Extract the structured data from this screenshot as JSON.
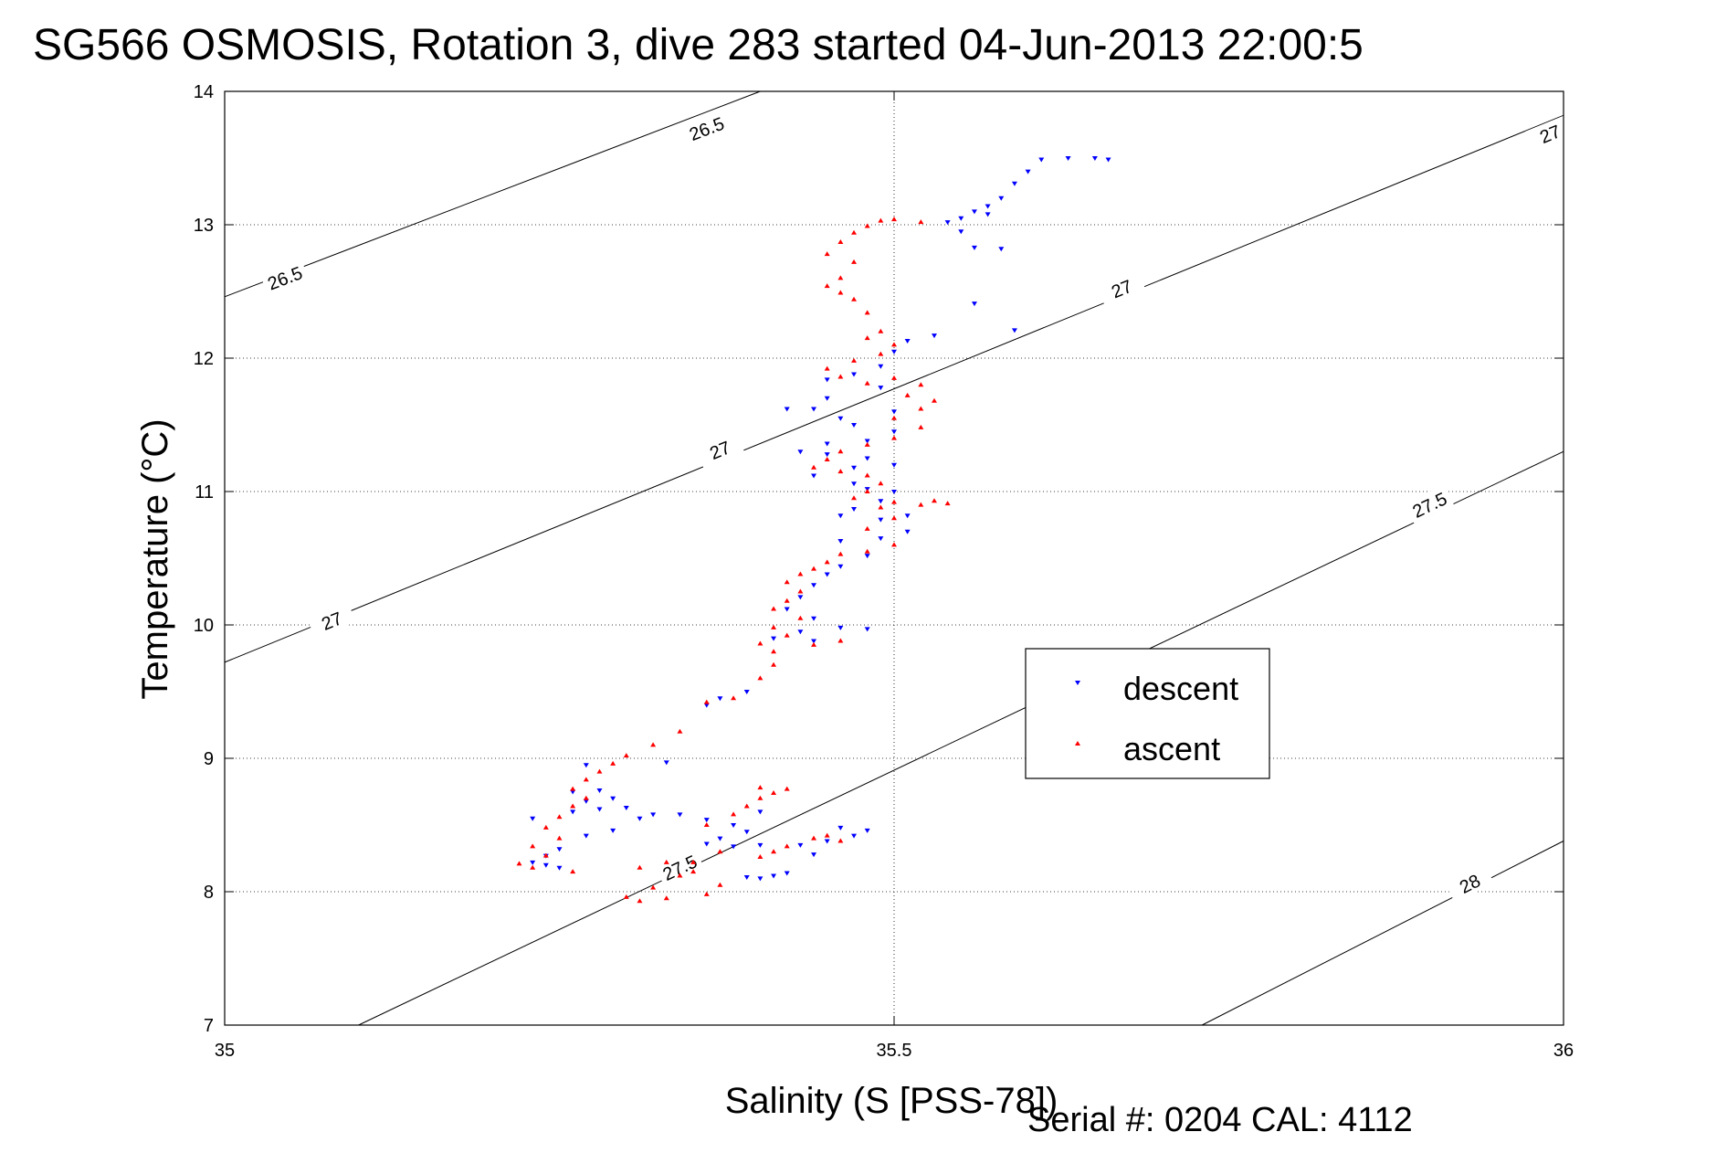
{
  "title": "SG566 OSMOSIS, Rotation 3, dive 283 started 04-Jun-2013 22:00:5",
  "footer": "Serial #: 0204  CAL: 4112",
  "chart_data": {
    "type": "scatter",
    "xlabel": "Salinity (S [PSS-78])",
    "ylabel": "Temperature (°C)",
    "xlim": [
      35,
      36
    ],
    "ylim": [
      7,
      14
    ],
    "xticks": [
      35,
      35.5,
      36
    ],
    "xtick_labels": [
      "35",
      "35.5",
      "36"
    ],
    "yticks": [
      7,
      8,
      9,
      10,
      11,
      12,
      13,
      14
    ],
    "ytick_labels": [
      "7",
      "8",
      "9",
      "10",
      "11",
      "12",
      "13",
      "14"
    ],
    "grid": true,
    "legend": {
      "placement": "center-right",
      "entries": [
        "descent",
        "ascent"
      ]
    },
    "colors": {
      "descent": "#0000ff",
      "ascent": "#ff0000",
      "contour": "#000000",
      "grid": "#000000"
    },
    "contours": [
      {
        "level": 26.5,
        "label": "26.5",
        "points": [
          [
            35.0,
            12.46
          ],
          [
            35.4,
            14.0
          ]
        ]
      },
      {
        "level": 27.0,
        "label": "27",
        "points": [
          [
            35.0,
            9.72
          ],
          [
            36.0,
            13.82
          ]
        ]
      },
      {
        "level": 27.5,
        "label": "27.5",
        "points": [
          [
            35.1,
            7.0
          ],
          [
            36.0,
            11.3
          ]
        ]
      },
      {
        "level": 28.0,
        "label": "28",
        "points": [
          [
            35.73,
            7.0
          ],
          [
            36.0,
            8.38
          ]
        ]
      }
    ],
    "contour_labels": [
      {
        "text": "26.5",
        "x": 35.36,
        "y": 13.72
      },
      {
        "text": "26.5",
        "x": 35.045,
        "y": 12.6
      },
      {
        "text": "27",
        "x": 35.99,
        "y": 13.68
      },
      {
        "text": "27",
        "x": 35.67,
        "y": 12.52
      },
      {
        "text": "27",
        "x": 35.37,
        "y": 11.31
      },
      {
        "text": "27",
        "x": 35.08,
        "y": 10.03
      },
      {
        "text": "27.5",
        "x": 35.9,
        "y": 10.9
      },
      {
        "text": "27.5",
        "x": 35.34,
        "y": 8.18
      },
      {
        "text": "28",
        "x": 35.93,
        "y": 8.06
      }
    ],
    "series": [
      {
        "name": "descent",
        "marker": "triangle-down",
        "points": [
          [
            35.66,
            13.49
          ],
          [
            35.65,
            13.5
          ],
          [
            35.63,
            13.5
          ],
          [
            35.61,
            13.49
          ],
          [
            35.6,
            13.4
          ],
          [
            35.59,
            13.31
          ],
          [
            35.58,
            13.2
          ],
          [
            35.57,
            13.14
          ],
          [
            35.56,
            13.1
          ],
          [
            35.55,
            13.05
          ],
          [
            35.54,
            13.02
          ],
          [
            35.57,
            13.08
          ],
          [
            35.55,
            12.95
          ],
          [
            35.56,
            12.83
          ],
          [
            35.58,
            12.82
          ],
          [
            35.59,
            12.21
          ],
          [
            35.56,
            12.41
          ],
          [
            35.53,
            12.17
          ],
          [
            35.51,
            12.13
          ],
          [
            35.5,
            12.05
          ],
          [
            35.49,
            11.94
          ],
          [
            35.47,
            11.88
          ],
          [
            35.45,
            11.84
          ],
          [
            35.49,
            11.78
          ],
          [
            35.45,
            11.7
          ],
          [
            35.42,
            11.62
          ],
          [
            35.44,
            11.62
          ],
          [
            35.46,
            11.55
          ],
          [
            35.47,
            11.5
          ],
          [
            35.5,
            11.6
          ],
          [
            35.5,
            11.45
          ],
          [
            35.48,
            11.38
          ],
          [
            35.45,
            11.36
          ],
          [
            35.43,
            11.3
          ],
          [
            35.45,
            11.28
          ],
          [
            35.48,
            11.25
          ],
          [
            35.5,
            11.2
          ],
          [
            35.47,
            11.18
          ],
          [
            35.44,
            11.12
          ],
          [
            35.47,
            11.06
          ],
          [
            35.48,
            11.02
          ],
          [
            35.5,
            11.0
          ],
          [
            35.49,
            10.93
          ],
          [
            35.47,
            10.87
          ],
          [
            35.46,
            10.82
          ],
          [
            35.49,
            10.79
          ],
          [
            35.51,
            10.82
          ],
          [
            35.51,
            10.7
          ],
          [
            35.49,
            10.65
          ],
          [
            35.46,
            10.63
          ],
          [
            35.48,
            10.52
          ],
          [
            35.46,
            10.44
          ],
          [
            35.45,
            10.38
          ],
          [
            35.44,
            10.3
          ],
          [
            35.43,
            10.21
          ],
          [
            35.42,
            10.12
          ],
          [
            35.44,
            10.05
          ],
          [
            35.46,
            9.98
          ],
          [
            35.48,
            9.97
          ],
          [
            35.43,
            9.95
          ],
          [
            35.41,
            9.9
          ],
          [
            35.44,
            9.88
          ],
          [
            35.39,
            9.5
          ],
          [
            35.37,
            9.45
          ],
          [
            35.36,
            9.4
          ],
          [
            35.27,
            8.95
          ],
          [
            35.33,
            8.97
          ],
          [
            35.28,
            8.76
          ],
          [
            35.26,
            8.75
          ],
          [
            35.29,
            8.7
          ],
          [
            35.27,
            8.68
          ],
          [
            35.28,
            8.62
          ],
          [
            35.31,
            8.55
          ],
          [
            35.34,
            8.58
          ],
          [
            35.36,
            8.54
          ],
          [
            35.4,
            8.6
          ],
          [
            35.38,
            8.5
          ],
          [
            35.39,
            8.45
          ],
          [
            35.37,
            8.4
          ],
          [
            35.36,
            8.36
          ],
          [
            35.38,
            8.34
          ],
          [
            35.4,
            8.35
          ],
          [
            35.43,
            8.35
          ],
          [
            35.45,
            8.38
          ],
          [
            35.47,
            8.42
          ],
          [
            35.46,
            8.48
          ],
          [
            35.48,
            8.46
          ],
          [
            35.44,
            8.28
          ],
          [
            35.41,
            8.12
          ],
          [
            35.4,
            8.1
          ],
          [
            35.39,
            8.11
          ],
          [
            35.42,
            8.14
          ],
          [
            35.25,
            8.32
          ],
          [
            35.24,
            8.27
          ],
          [
            35.23,
            8.22
          ],
          [
            35.24,
            8.2
          ],
          [
            35.25,
            8.18
          ],
          [
            35.27,
            8.42
          ],
          [
            35.29,
            8.46
          ],
          [
            35.23,
            8.55
          ],
          [
            35.26,
            8.6
          ],
          [
            35.3,
            8.63
          ],
          [
            35.32,
            8.58
          ]
        ]
      },
      {
        "name": "ascent",
        "marker": "triangle-up",
        "points": [
          [
            35.52,
            13.02
          ],
          [
            35.5,
            13.04
          ],
          [
            35.49,
            13.03
          ],
          [
            35.48,
            12.99
          ],
          [
            35.47,
            12.94
          ],
          [
            35.46,
            12.87
          ],
          [
            35.45,
            12.78
          ],
          [
            35.47,
            12.72
          ],
          [
            35.46,
            12.6
          ],
          [
            35.45,
            12.54
          ],
          [
            35.46,
            12.49
          ],
          [
            35.47,
            12.44
          ],
          [
            35.48,
            12.34
          ],
          [
            35.49,
            12.2
          ],
          [
            35.48,
            12.15
          ],
          [
            35.5,
            12.1
          ],
          [
            35.49,
            12.03
          ],
          [
            35.47,
            11.98
          ],
          [
            35.45,
            11.92
          ],
          [
            35.46,
            11.86
          ],
          [
            35.48,
            11.81
          ],
          [
            35.5,
            11.85
          ],
          [
            35.52,
            11.8
          ],
          [
            35.51,
            11.72
          ],
          [
            35.53,
            11.68
          ],
          [
            35.52,
            11.62
          ],
          [
            35.5,
            11.55
          ],
          [
            35.52,
            11.48
          ],
          [
            35.5,
            11.4
          ],
          [
            35.48,
            11.35
          ],
          [
            35.46,
            11.3
          ],
          [
            35.45,
            11.24
          ],
          [
            35.44,
            11.18
          ],
          [
            35.46,
            11.15
          ],
          [
            35.48,
            11.12
          ],
          [
            35.49,
            11.06
          ],
          [
            35.48,
            11.0
          ],
          [
            35.47,
            10.95
          ],
          [
            35.49,
            10.88
          ],
          [
            35.5,
            10.92
          ],
          [
            35.52,
            10.9
          ],
          [
            35.53,
            10.93
          ],
          [
            35.54,
            10.91
          ],
          [
            35.5,
            10.8
          ],
          [
            35.48,
            10.72
          ],
          [
            35.5,
            10.6
          ],
          [
            35.48,
            10.55
          ],
          [
            35.46,
            10.53
          ],
          [
            35.45,
            10.47
          ],
          [
            35.44,
            10.42
          ],
          [
            35.43,
            10.38
          ],
          [
            35.42,
            10.32
          ],
          [
            35.43,
            10.25
          ],
          [
            35.42,
            10.18
          ],
          [
            35.41,
            10.12
          ],
          [
            35.43,
            10.05
          ],
          [
            35.41,
            9.98
          ],
          [
            35.42,
            9.92
          ],
          [
            35.4,
            9.86
          ],
          [
            35.41,
            9.8
          ],
          [
            35.44,
            9.85
          ],
          [
            35.46,
            9.88
          ],
          [
            35.41,
            9.7
          ],
          [
            35.4,
            9.6
          ],
          [
            35.38,
            9.45
          ],
          [
            35.36,
            9.42
          ],
          [
            35.32,
            9.1
          ],
          [
            35.34,
            9.2
          ],
          [
            35.3,
            9.02
          ],
          [
            35.29,
            8.96
          ],
          [
            35.28,
            8.9
          ],
          [
            35.27,
            8.84
          ],
          [
            35.26,
            8.77
          ],
          [
            35.27,
            8.7
          ],
          [
            35.26,
            8.64
          ],
          [
            35.25,
            8.56
          ],
          [
            35.24,
            8.48
          ],
          [
            35.25,
            8.4
          ],
          [
            35.23,
            8.34
          ],
          [
            35.24,
            8.27
          ],
          [
            35.22,
            8.21
          ],
          [
            35.23,
            8.18
          ],
          [
            35.26,
            8.15
          ],
          [
            35.36,
            8.5
          ],
          [
            35.38,
            8.58
          ],
          [
            35.39,
            8.64
          ],
          [
            35.4,
            8.7
          ],
          [
            35.41,
            8.74
          ],
          [
            35.42,
            8.77
          ],
          [
            35.4,
            8.78
          ],
          [
            35.44,
            8.4
          ],
          [
            35.45,
            8.42
          ],
          [
            35.46,
            8.38
          ],
          [
            35.42,
            8.34
          ],
          [
            35.41,
            8.3
          ],
          [
            35.4,
            8.26
          ],
          [
            35.37,
            8.3
          ],
          [
            35.35,
            8.22
          ],
          [
            35.34,
            8.12
          ],
          [
            35.32,
            8.03
          ],
          [
            35.3,
            7.96
          ],
          [
            35.31,
            7.93
          ],
          [
            35.33,
            7.95
          ],
          [
            35.36,
            7.98
          ],
          [
            35.37,
            8.05
          ],
          [
            35.35,
            8.15
          ],
          [
            35.33,
            8.22
          ],
          [
            35.31,
            8.18
          ]
        ]
      }
    ]
  }
}
